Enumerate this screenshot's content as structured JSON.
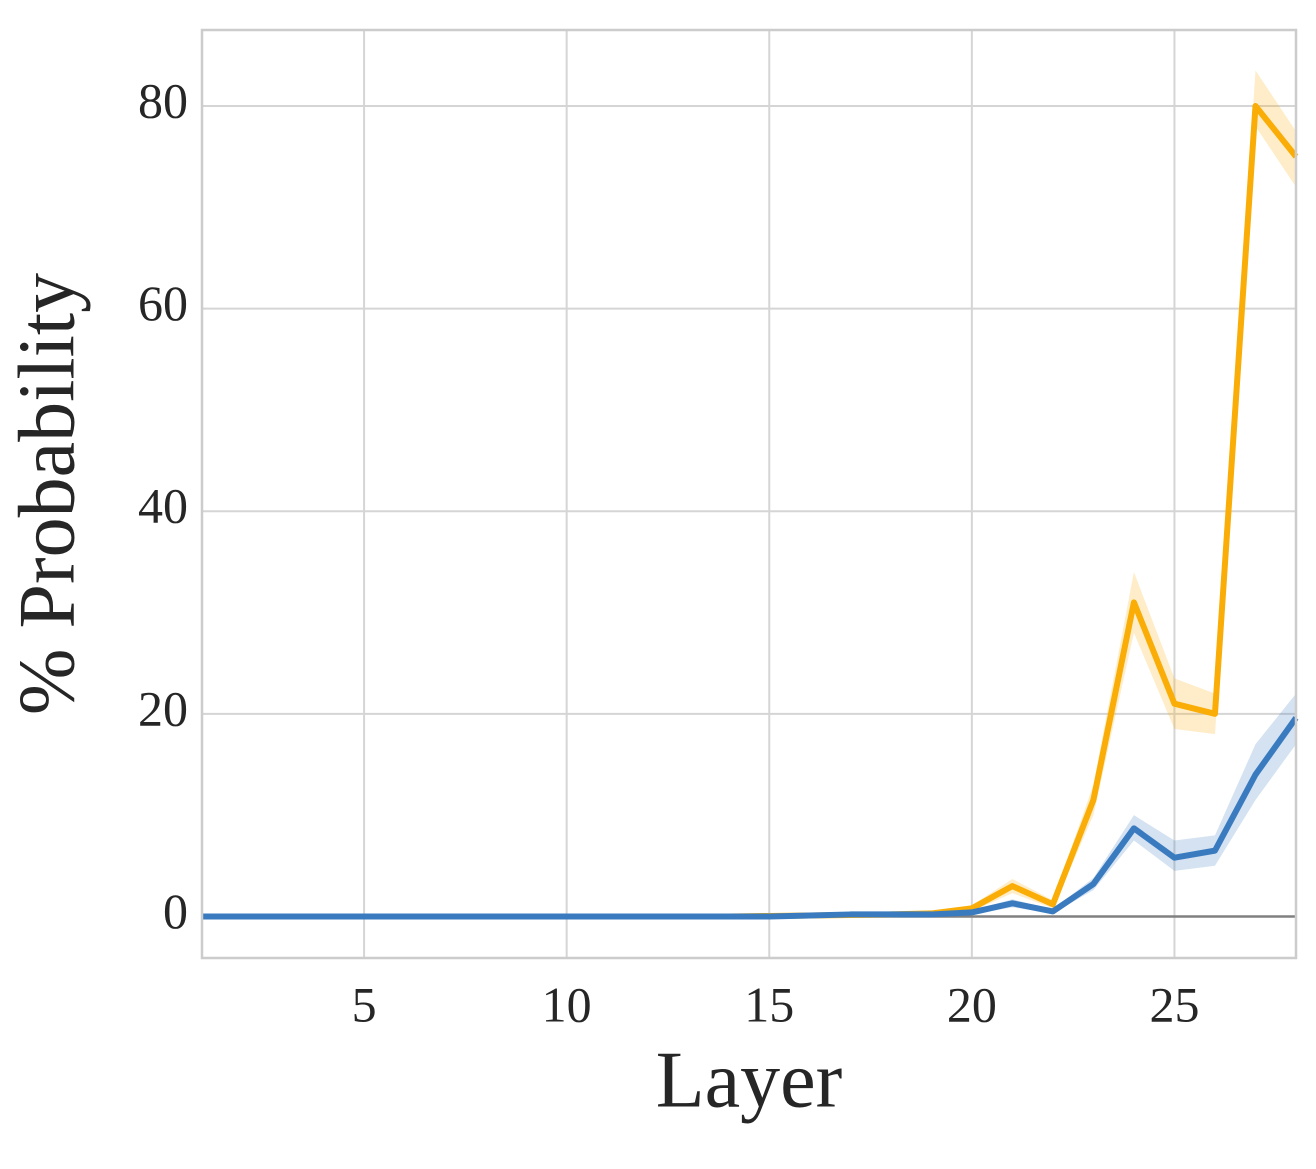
{
  "chart_data": {
    "type": "line",
    "x_label": "Layer",
    "y_label": "% Probability",
    "x": [
      1,
      2,
      3,
      4,
      5,
      6,
      7,
      8,
      9,
      10,
      11,
      12,
      13,
      14,
      15,
      16,
      17,
      18,
      19,
      20,
      21,
      22,
      23,
      24,
      25,
      26,
      27,
      28
    ],
    "series": [
      {
        "color": "#f9ad06",
        "values": [
          0,
          0,
          0,
          0,
          0,
          0,
          0,
          0,
          0,
          0,
          0,
          0,
          0,
          0,
          0.05,
          0.1,
          0.15,
          0.2,
          0.3,
          0.8,
          3,
          1.2,
          11.5,
          31,
          21,
          20,
          80,
          75
        ],
        "lower": [
          0,
          0,
          0,
          0,
          0,
          0,
          0,
          0,
          0,
          0,
          0,
          0,
          0,
          0,
          0,
          0.05,
          0.1,
          0.15,
          0.2,
          0.5,
          2.3,
          0.8,
          10,
          28,
          18.5,
          18,
          78,
          72
        ],
        "upper": [
          0,
          0,
          0,
          0,
          0,
          0,
          0,
          0,
          0,
          0,
          0,
          0,
          0,
          0,
          0.1,
          0.15,
          0.2,
          0.3,
          0.4,
          1.1,
          3.7,
          1.6,
          13,
          34,
          23.5,
          22,
          83.5,
          77.5
        ]
      },
      {
        "color": "#3a7bbf",
        "values": [
          0,
          0,
          0,
          0,
          0,
          0,
          0,
          0,
          0,
          0,
          0,
          0,
          0,
          0,
          0,
          0.1,
          0.2,
          0.2,
          0.2,
          0.4,
          1.3,
          0.5,
          3.2,
          8.7,
          5.8,
          6.5,
          14,
          19.6
        ],
        "lower": [
          0,
          0,
          0,
          0,
          0,
          0,
          0,
          0,
          0,
          0,
          0,
          0,
          0,
          0,
          0,
          0.05,
          0.1,
          0.1,
          0.1,
          0.2,
          0.9,
          0.3,
          2.6,
          7.5,
          4.5,
          5,
          11.5,
          17
        ],
        "upper": [
          0,
          0,
          0,
          0,
          0,
          0,
          0,
          0,
          0,
          0,
          0,
          0,
          0,
          0,
          0,
          0.15,
          0.3,
          0.3,
          0.3,
          0.6,
          1.7,
          0.7,
          3.8,
          10,
          7.5,
          8,
          17,
          22
        ]
      }
    ],
    "reference_line": 0,
    "xlim": [
      1,
      28
    ],
    "ylim": [
      -4.1,
      87.5
    ],
    "xticks": [
      5,
      10,
      15,
      20,
      25
    ],
    "yticks": [
      0,
      20,
      40,
      60,
      80
    ],
    "grid": true
  }
}
